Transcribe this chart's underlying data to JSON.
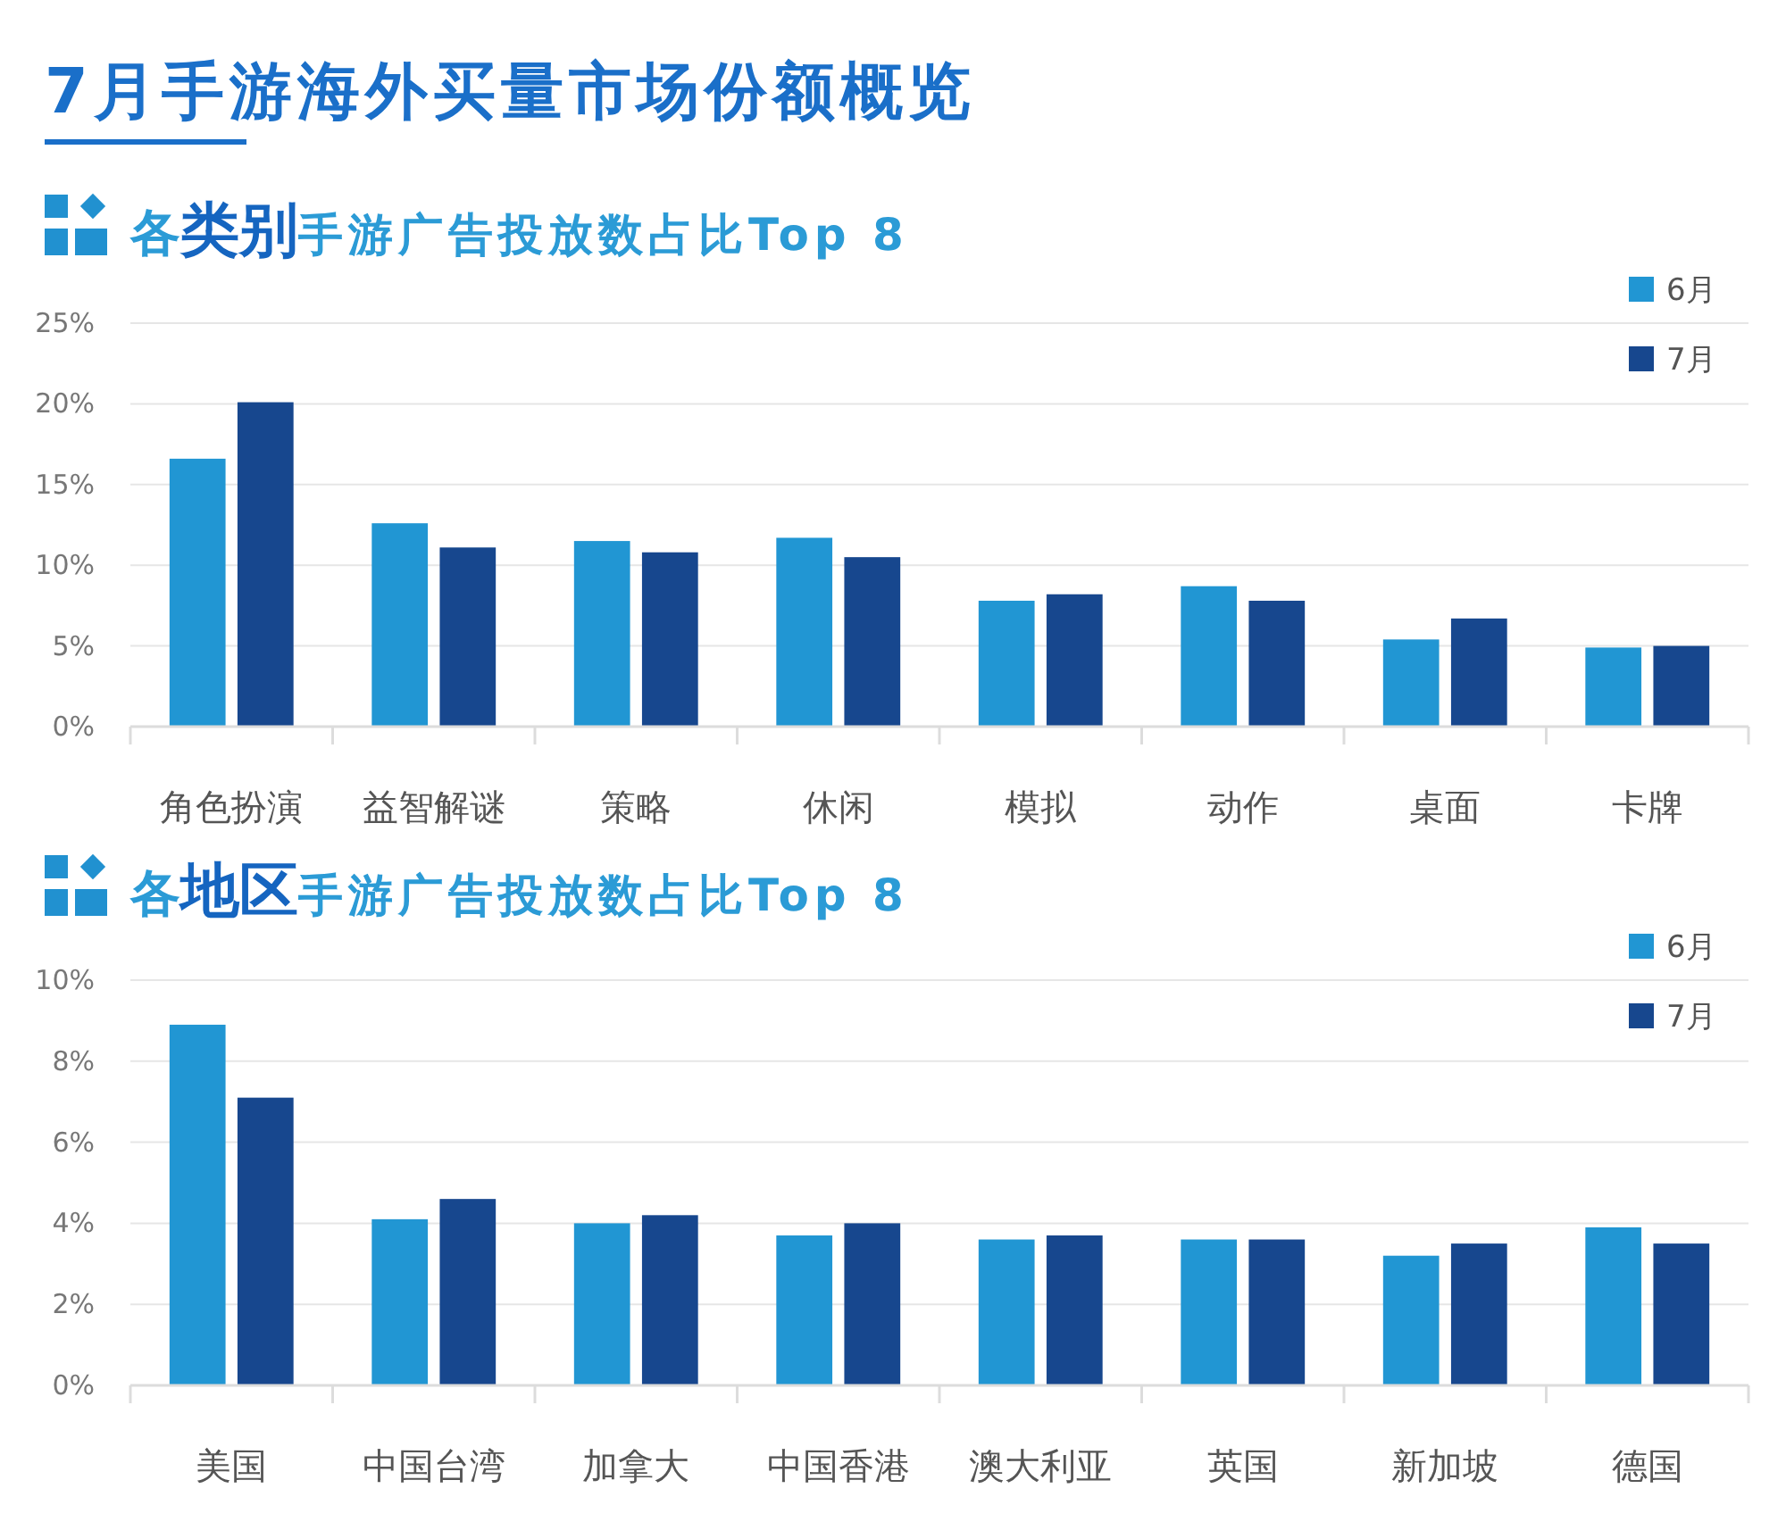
{
  "chart_data": [
    {
      "type": "bar",
      "title": "7月手游海外买量市场份额概览",
      "subtitle": "各类别手游广告投放数占比Top 8",
      "categories": [
        "角色扮演",
        "益智解谜",
        "策略",
        "休闲",
        "模拟",
        "动作",
        "桌面",
        "卡牌"
      ],
      "series": [
        {
          "name": "6月",
          "color": "#2196d3",
          "values": [
            16.6,
            12.6,
            11.5,
            11.7,
            7.8,
            8.7,
            5.4,
            4.9
          ]
        },
        {
          "name": "7月",
          "color": "#17478e",
          "values": [
            20.1,
            11.1,
            10.8,
            10.5,
            8.2,
            7.8,
            6.7,
            5.0
          ]
        }
      ],
      "ylim": [
        0,
        25
      ],
      "yticks": [
        {
          "value": 0,
          "label": "0%"
        },
        {
          "value": 5,
          "label": "5%"
        },
        {
          "value": 10,
          "label": "10%"
        },
        {
          "value": 15,
          "label": "15%"
        },
        {
          "value": 20,
          "label": "20%"
        },
        {
          "value": 25,
          "label": "25%"
        }
      ],
      "grid": "y",
      "legend": "top right"
    },
    {
      "type": "bar",
      "title": "各地区手游广告投放数占比Top 8",
      "categories": [
        "美国",
        "中国台湾",
        "加拿大",
        "中国香港",
        "澳大利亚",
        "英国",
        "新加坡",
        "德国"
      ],
      "series": [
        {
          "name": "6月",
          "color": "#2196d3",
          "values": [
            8.9,
            4.1,
            4.0,
            3.7,
            3.6,
            3.6,
            3.2,
            3.9
          ]
        },
        {
          "name": "7月",
          "color": "#17478e",
          "values": [
            7.1,
            4.6,
            4.2,
            4.0,
            3.7,
            3.6,
            3.5,
            3.5
          ]
        }
      ],
      "ylim": [
        0,
        10
      ],
      "yticks": [
        {
          "value": 0,
          "label": "0%"
        },
        {
          "value": 2,
          "label": "2%"
        },
        {
          "value": 4,
          "label": "4%"
        },
        {
          "value": 6,
          "label": "6%"
        },
        {
          "value": 8,
          "label": "8%"
        },
        {
          "value": 10,
          "label": "10%"
        }
      ],
      "grid": "y",
      "legend": "top right"
    }
  ]
}
